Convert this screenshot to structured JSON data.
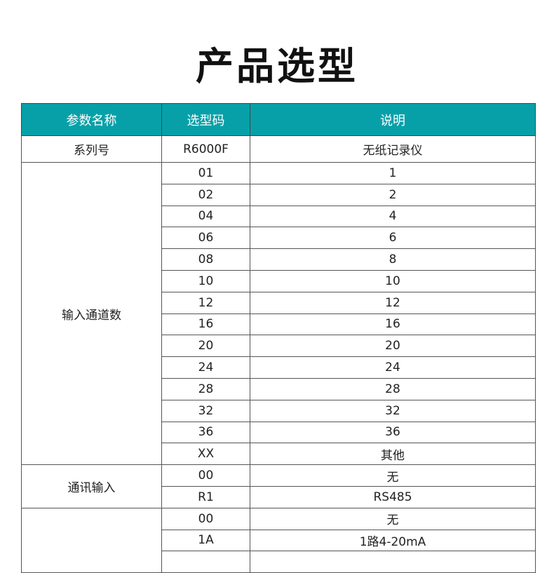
{
  "title": "产品选型",
  "header": [
    "参数名称",
    "选型码",
    "说明"
  ],
  "series": {
    "name": "系列号",
    "code": "R6000F",
    "desc": "无纸记录仪"
  },
  "groups": [
    {
      "name": "输入通道数",
      "rows": [
        [
          "01",
          "1"
        ],
        [
          "02",
          "2"
        ],
        [
          "04",
          "4"
        ],
        [
          "06",
          "6"
        ],
        [
          "08",
          "8"
        ],
        [
          "10",
          "10"
        ],
        [
          "12",
          "12"
        ],
        [
          "16",
          "16"
        ],
        [
          "20",
          "20"
        ],
        [
          "24",
          "24"
        ],
        [
          "28",
          "28"
        ],
        [
          "32",
          "32"
        ],
        [
          "36",
          "36"
        ],
        [
          "XX",
          "其他"
        ]
      ]
    },
    {
      "name": "通讯输入",
      "rows": [
        [
          "00",
          "无"
        ],
        [
          "R1",
          "RS485"
        ]
      ]
    },
    {
      "name": "",
      "rows": [
        [
          "00",
          "无"
        ],
        [
          "1A",
          "1路4-20mA"
        ],
        [
          "",
          ""
        ]
      ]
    }
  ],
  "colors": {
    "header_bg": "#08a0a8"
  }
}
